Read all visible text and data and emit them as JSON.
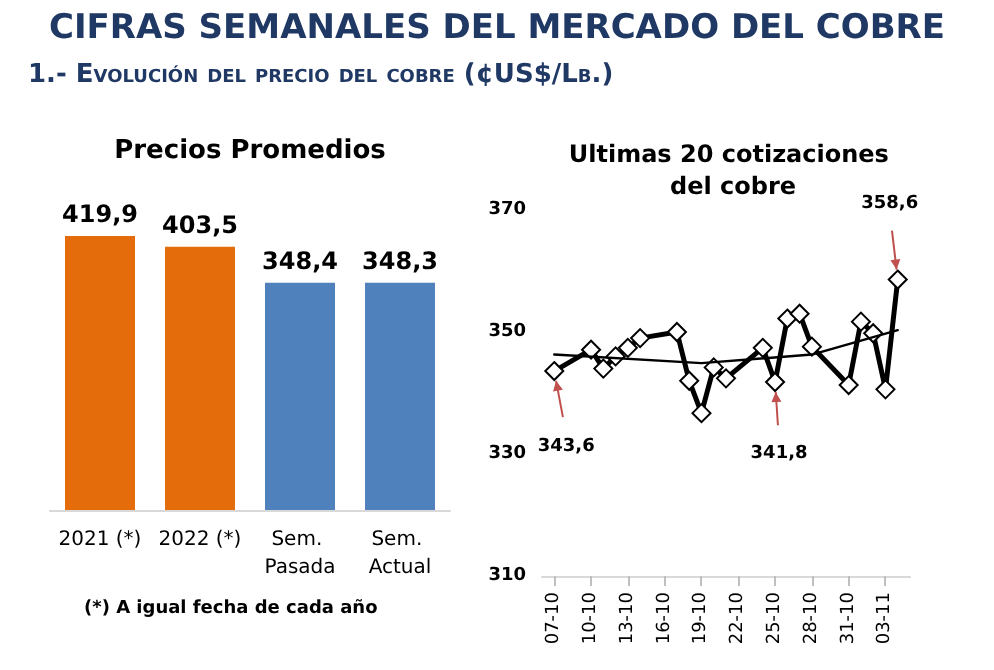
{
  "chart_data": [
    {
      "type": "other",
      "title": "CIFRAS SEMANALES DEL MERCADO DEL COBRE",
      "subtitle": "1.- Evolución del precio del cobre (¢US$/Lb.)"
    },
    {
      "type": "bar",
      "title": "Precios Promedios",
      "categories": [
        "2021 (*)",
        "2022 (*)",
        "Sem. Pasada",
        "Sem. Actual"
      ],
      "values": [
        419.9,
        403.5,
        348.4,
        348.3
      ],
      "colors": [
        "#e46c0a",
        "#e46c0a",
        "#4f81bd",
        "#4f81bd"
      ],
      "value_labels": [
        "419,9",
        "403,5",
        "348,4",
        "348,3"
      ],
      "annotations": [
        "(*) A igual fecha de cada año"
      ]
    },
    {
      "type": "line",
      "title": "Ultimas 20 cotizaciones del cobre",
      "marker": "diamond",
      "grid": false,
      "x": [
        "--10-07",
        "--10-10",
        "--10-11",
        "--10-12",
        "--10-13",
        "--10-14",
        "--10-17",
        "--10-18",
        "--10-19",
        "--10-20",
        "--10-21",
        "--10-24",
        "--10-25",
        "--10-26",
        "--10-27",
        "--10-28",
        "--10-31",
        "--11-01",
        "--11-02",
        "--11-03",
        "--11-04"
      ],
      "series": [
        {
          "color": "#000000",
          "values": [
            343.6,
            347.1,
            344.0,
            346.0,
            347.4,
            349.0,
            350.0,
            342.0,
            336.7,
            344.2,
            342.4,
            347.4,
            341.8,
            352.2,
            353.0,
            347.6,
            341.3,
            351.7,
            349.8,
            340.6,
            358.6
          ]
        },
        {
          "type": "line",
          "color": "#000000",
          "marker": "none",
          "x": [
            "--10-07",
            "--10-19",
            "--10-28",
            "--11-04"
          ],
          "values": [
            346.3,
            344.9,
            346.3,
            350.3
          ]
        }
      ],
      "xlim": [
        "--10-06",
        "--11-05"
      ],
      "xticks": [
        {
          "value": "--10-07",
          "label": "07-10"
        },
        {
          "value": "--10-10",
          "label": "10-10"
        },
        {
          "value": "--10-13",
          "label": "13-10"
        },
        {
          "value": "--10-16",
          "label": "16-10"
        },
        {
          "value": "--10-19",
          "label": "19-10"
        },
        {
          "value": "--10-22",
          "label": "22-10"
        },
        {
          "value": "--10-25",
          "label": "25-10"
        },
        {
          "value": "--10-28",
          "label": "28-10"
        },
        {
          "value": "--10-31",
          "label": "31-10"
        },
        {
          "value": "--11-03",
          "label": "03-11"
        }
      ],
      "ylim": [
        310,
        370
      ],
      "yticks": [
        310,
        330,
        350,
        370
      ],
      "annotations": [
        {
          "text": "343,6",
          "x": "--10-07",
          "y": 343.6
        },
        {
          "text": "341,8",
          "x": "--10-25",
          "y": 341.8
        },
        {
          "text": "358,6",
          "x": "--11-04",
          "y": 358.6
        }
      ]
    }
  ]
}
